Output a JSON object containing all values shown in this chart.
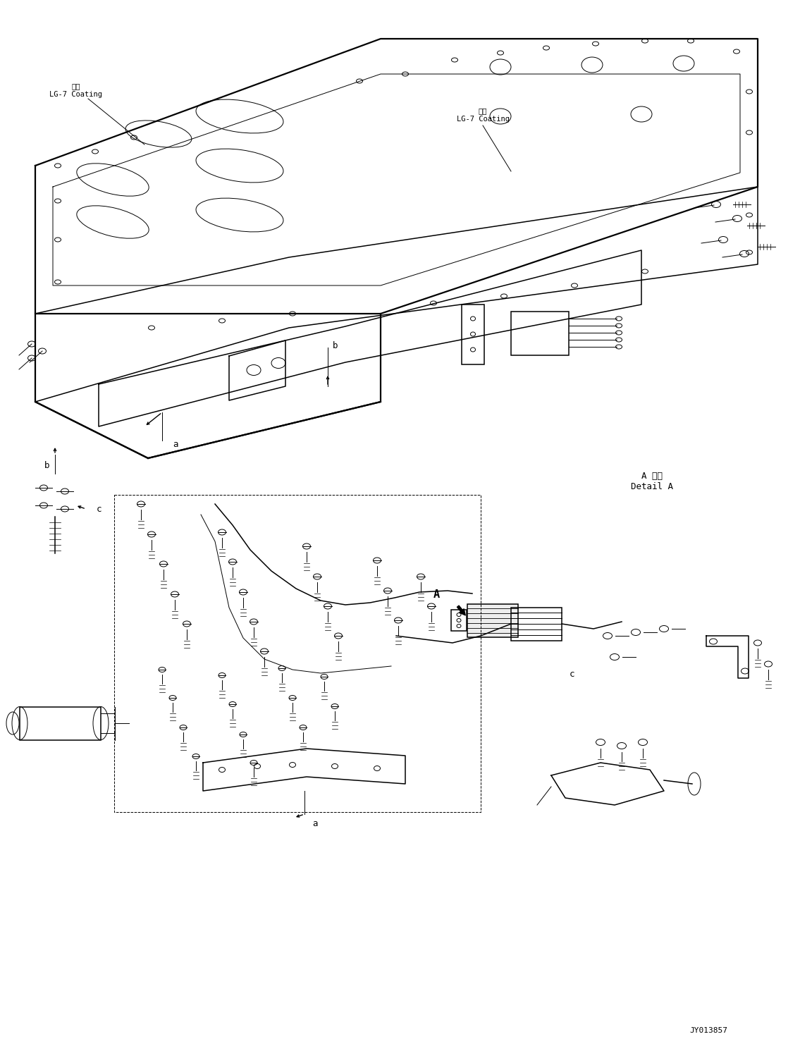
{
  "bg_color": "#ffffff",
  "line_color": "#000000",
  "fig_width": 11.35,
  "fig_height": 14.91,
  "dpi": 100,
  "label_lg7_1": "塗布\nLG-7 Coating",
  "label_lg7_2": "塗布\nLG-7 Coating",
  "label_a_detail": "A 詳細\nDetail A",
  "label_jy": "JY013857",
  "label_a": "A",
  "label_b_left": "b",
  "label_b_mid": "b",
  "label_c_left": "c",
  "label_c_right": "c",
  "label_a_bottom": "a",
  "label_a_mid": "a"
}
